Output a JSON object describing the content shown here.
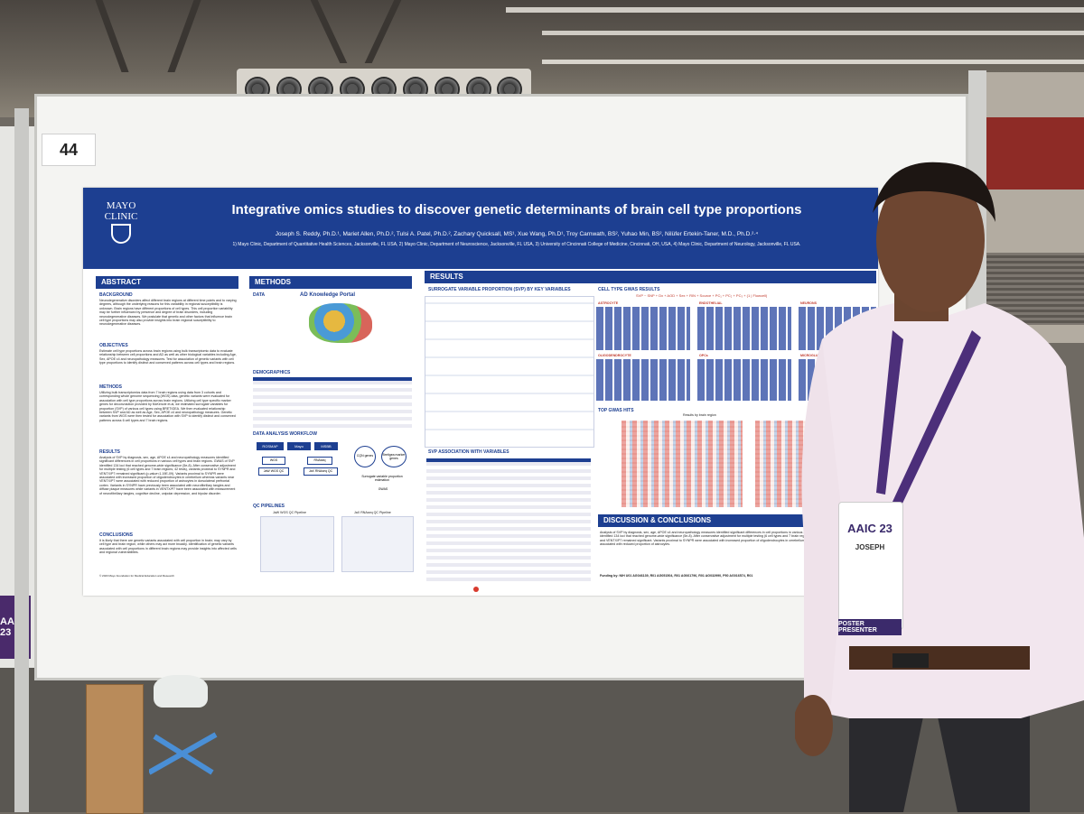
{
  "board": {
    "number": "44"
  },
  "left_panel": {
    "badge_text": "AAIC 23"
  },
  "poster": {
    "logo_text_line1": "MAYO",
    "logo_text_line2": "CLINIC",
    "title": "Integrative omics studies to discover genetic determinants of brain cell type proportions",
    "authors": "Joseph S. Reddy, Ph.D.¹, Mariet Allen, Ph.D.², Tulsi A. Patel, Ph.D.², Zachary Quicksall, MS¹, Xue Wang, Ph.D¹, Troy Carnwath, BS², Yuhao Min, BS², Nilüfer Ertekin-Taner, M.D., Ph.D.²·⁴",
    "affiliations": "1) Mayo Clinic, Department of Quantitative Health Sciences, Jacksonville, FL USA, 2) Mayo Clinic, Department of Neuroscience, Jacksonville, FL USA, 3) University of Cincinnati College of Medicine, Cincinnati, OH, USA, 4) Mayo Clinic, Department of Neurology, Jacksonville, FL USA.",
    "sections": {
      "abstract": "ABSTRACT",
      "methods": "METHODS",
      "results": "RESULTS",
      "discussion": "DISCUSSION & CONCLUSIONS"
    },
    "abstract": {
      "background_head": "BACKGROUND",
      "background": "Neurodegenerative disorders affect different brain regions at different time points and to varying degrees, although the underlying reasons for this variability in regional susceptibility is unknown. Brain regions have different proportions of cell types. This cell proportion variability may be further influenced by presence and degree of brain disorders, including neurodegenerative diseases. We postulate that genetic and other factors that influence brain cell type proportions may also provide insights into brain regional susceptibility to neurodegenerative diseases.",
      "objectives_head": "OBJECTIVES",
      "objectives": "Estimate cell type proportions across brain regions using bulk transcriptomic data to evaluate relationship between cell proportions and AD as well as other biological variables including Age, Sex, APOE ε4 and neuropathology measures. Test for association of genetic variants with cell type proportions to identify distinct and conserved patterns across cell types and brain regions.",
      "methods_head": "METHODS",
      "methods": "Utilizing bulk transcriptomics data from 7 brain regions using data from 3 cohorts and corresponding whole genome sequencing (WGS) data, genetic variants were evaluated for association with cell type proportions across brain regions. Utilizing cell type specific marker genes for deconvolution provided by McKenzie et.al, we estimated surrogate variables for proportion (SVP) of various cell types using BRETIGEA. We then evaluated relationship between SVP and AD as well as Age, Sex, APOE ε4 and neuropathology measures. Genetic variants from WGS were then tested for association with SVP to identify distinct and conserved patterns across 6 cell types and 7 brain regions.",
      "results_head": "RESULTS",
      "results": "Analysis of SVP by diagnosis, sex, age, APOE ε4 and neuropathology measures identified significant differences in cell proportions in various cell types and brain regions. GWAS of SVP identified 134 loci that reached genome-wide significance (5e-8). After conservative adjustment for multiple testing (6 cell types and 7 brain regions; 42 tests), variants proximal to SYNPR and VENTX/P7 remained significant (p-value<1.19E-09). Variants proximal to SYNPR were associated with increased proportion of oligodendrocytes in cerebellum whereas variants near VENTX/P7 were associated with reduced proportion of astrocytes in dorsolateral prefrontal cortex. Variants in SYNPR have previously been associated with neurofibrillary tangles and diffuse plaque measures while variants in VENTX/P7 have been associated with measurement of neurofibrillary tangles, cognitive decline, unipolar depression, and bipolar disorder.",
      "conclusions_head": "CONCLUSIONS",
      "conclusions": "It is likely that there are genetic variants associated with cell proportion in brain; may vary by cell type and brain region, while others may act more broadly. Identification of genetic variants associated with cell proportions in different brain regions may provide insights into affected cells and regional vulnerabilities.",
      "copyright": "© 2023 Mayo Foundation for Medical Education and Research"
    },
    "methods": {
      "data_head": "DATA",
      "portal_label": "AD Knowledge Portal",
      "demographics_head": "DEMOGRAPHICS",
      "workflow_head": "DATA ANALYSIS WORKFLOW",
      "workflow_boxes": [
        "ROSMAP",
        "Mayo",
        "MSBB",
        "WGS",
        "RNAseq",
        "JaW WGS QC",
        "JaX RNAseq QC",
        "CQN genes",
        "Bretigea marker genes",
        "Surrogate variable proportion estimation",
        "GWAS"
      ],
      "qc_head": "QC PIPELINES",
      "qc_left": "JaW WGS QC Pipeline",
      "qc_right": "JaX RNAseq QC Pipeline"
    },
    "results": {
      "svp_head": "SURROGATE VARIABLE PROPORTION (SVP) BY KEY VARIABLES",
      "gwas_head": "CELL TYPE GWAS RESULTS",
      "gwas_formula": "SVP ~ SNP + Dx + AOD + Sex + RIN + Source + PC₁ + PC₂ + PC₃ + (1 | Flowcell)",
      "assoc_head": "SVP ASSOCIATION WITH VARIABLES",
      "hits_head": "TOP GWAS HITS",
      "hits_sub": "Results by brain region",
      "cell_types": [
        "ASTROCYTE",
        "ENDOTHELIAL",
        "NEURONS",
        "OLIGODENDROCYTE",
        "OPCs",
        "MICROGLIA"
      ]
    },
    "discussion": "Analysis of SVP by diagnosis, sex, age, APOE ε4 and neuropathology measures identified significant differences in cell proportions in various cell types and brain regions. GWAS of SVP identified 134 loci that reached genome-wide significance (5e-8). After conservative adjustment for multiple testing (6 cell types and 7 brain regions; 42 tests), variants proximal to SYNPR and VENTX/P7 remained significant. Variants proximal to SYNPR were associated with increased proportion of oligodendrocytes in cerebellum whereas variants near VENTX/P7 were associated with reduced proportion of astrocytes.",
    "funding": "Funding by: NIH U01 AG046139, R01 AG051504, R01 AG061796, R01 AG032990, P50 AG016574, R01"
  },
  "person": {
    "badge_name": "JOSEPH",
    "badge_event": "AAIC 23",
    "badge_role": "POSTER PRESENTER"
  }
}
